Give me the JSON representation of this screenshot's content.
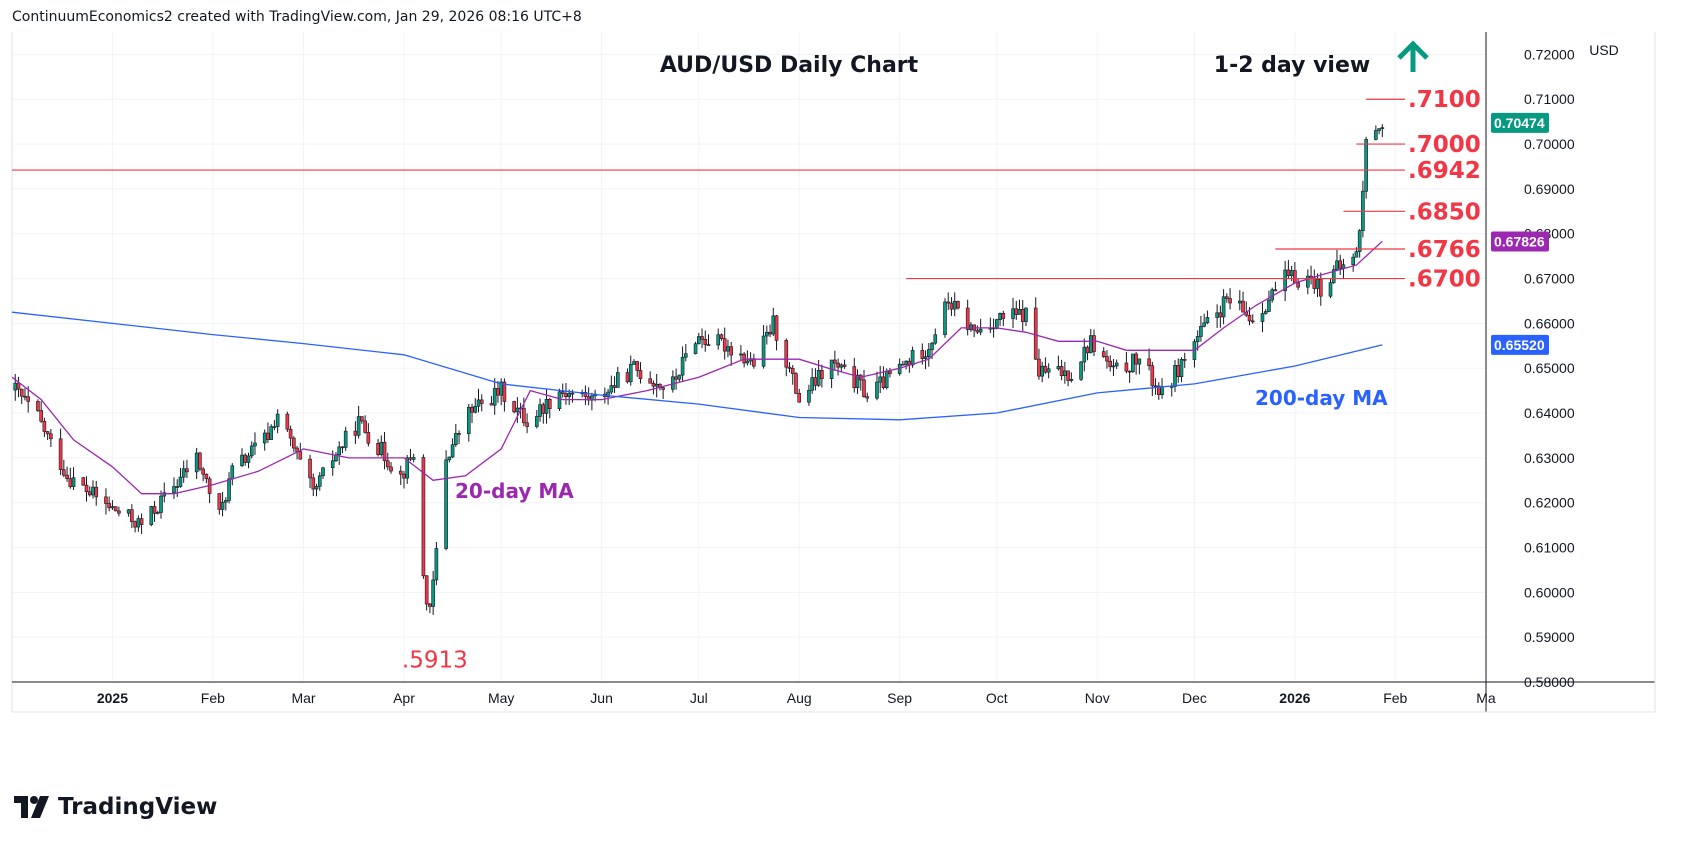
{
  "header": "ContinuumEconomics2 created with TradingView.com, Jan 29, 2026 08:16 UTC+8",
  "brand": "TradingView",
  "chart_data": {
    "type": "candlestick",
    "title": "AUD/USD Daily Chart",
    "view_label": "1-2 day view",
    "view_direction": "up",
    "currency": "USD",
    "x_range": [
      "2024-12-01",
      "2026-03-01"
    ],
    "y_range": [
      0.58,
      0.725
    ],
    "grid": true,
    "x_ticks": [
      {
        "date": "2025-01-01",
        "label": "2025",
        "bold": true
      },
      {
        "date": "2025-02-01",
        "label": "Feb"
      },
      {
        "date": "2025-03-01",
        "label": "Mar"
      },
      {
        "date": "2025-04-01",
        "label": "Apr"
      },
      {
        "date": "2025-05-01",
        "label": "May"
      },
      {
        "date": "2025-06-01",
        "label": "Jun"
      },
      {
        "date": "2025-07-01",
        "label": "Jul"
      },
      {
        "date": "2025-08-01",
        "label": "Aug"
      },
      {
        "date": "2025-09-01",
        "label": "Sep"
      },
      {
        "date": "2025-10-01",
        "label": "Oct"
      },
      {
        "date": "2025-11-01",
        "label": "Nov"
      },
      {
        "date": "2025-12-01",
        "label": "Dec"
      },
      {
        "date": "2026-01-01",
        "label": "2026",
        "bold": true
      },
      {
        "date": "2026-02-01",
        "label": "Feb"
      },
      {
        "date": "2026-03-01",
        "label": "Ma"
      }
    ],
    "y_ticks": [
      {
        "value": 0.58,
        "label": "0.58000"
      },
      {
        "value": 0.59,
        "label": "0.59000"
      },
      {
        "value": 0.6,
        "label": "0.60000"
      },
      {
        "value": 0.61,
        "label": "0.61000"
      },
      {
        "value": 0.62,
        "label": "0.62000"
      },
      {
        "value": 0.63,
        "label": "0.63000"
      },
      {
        "value": 0.64,
        "label": "0.64000"
      },
      {
        "value": 0.65,
        "label": "0.65000"
      },
      {
        "value": 0.66,
        "label": "0.66000"
      },
      {
        "value": 0.67,
        "label": "0.67000"
      },
      {
        "value": 0.68,
        "label": "0.68000"
      },
      {
        "value": 0.69,
        "label": "0.69000"
      },
      {
        "value": 0.7,
        "label": "0.70000"
      },
      {
        "value": 0.71,
        "label": "0.71000"
      },
      {
        "value": 0.72,
        "label": "0.72000"
      }
    ],
    "price_badges": [
      {
        "value": 0.70474,
        "label": "0.70474",
        "color": "#089981"
      },
      {
        "value": 0.67826,
        "label": "0.67826",
        "color": "#9c27b0"
      },
      {
        "value": 0.6552,
        "label": "0.65520",
        "color": "#2962ff"
      }
    ],
    "levels": [
      {
        "label": ".7100",
        "value": 0.71,
        "from": "2026-01-23"
      },
      {
        "label": ".7000",
        "value": 0.7,
        "from": "2026-01-20"
      },
      {
        "label": ".6942",
        "value": 0.6942,
        "from": "2024-12-01"
      },
      {
        "label": ".6850",
        "value": 0.685,
        "from": "2026-01-16"
      },
      {
        "label": ".6766",
        "value": 0.6766,
        "from": "2025-12-26"
      },
      {
        "label": ".6700",
        "value": 0.67,
        "from": "2025-09-03"
      }
    ],
    "low_annotation": {
      "label": ".5913",
      "value": 0.5913,
      "date": "2025-04-09"
    },
    "series": [
      {
        "name": "20-day MA",
        "color": "#9c27b0",
        "points": [
          [
            "2024-12-01",
            0.648
          ],
          [
            "2024-12-10",
            0.643
          ],
          [
            "2024-12-20",
            0.634
          ],
          [
            "2025-01-01",
            0.628
          ],
          [
            "2025-01-10",
            0.622
          ],
          [
            "2025-01-20",
            0.622
          ],
          [
            "2025-02-01",
            0.624
          ],
          [
            "2025-02-15",
            0.627
          ],
          [
            "2025-03-01",
            0.632
          ],
          [
            "2025-03-15",
            0.63
          ],
          [
            "2025-04-01",
            0.63
          ],
          [
            "2025-04-10",
            0.625
          ],
          [
            "2025-04-20",
            0.626
          ],
          [
            "2025-05-01",
            0.632
          ],
          [
            "2025-05-10",
            0.645
          ],
          [
            "2025-05-20",
            0.643
          ],
          [
            "2025-06-01",
            0.643
          ],
          [
            "2025-06-15",
            0.645
          ],
          [
            "2025-07-01",
            0.648
          ],
          [
            "2025-07-15",
            0.652
          ],
          [
            "2025-08-01",
            0.652
          ],
          [
            "2025-08-10",
            0.65
          ],
          [
            "2025-08-20",
            0.648
          ],
          [
            "2025-09-01",
            0.65
          ],
          [
            "2025-09-10",
            0.652
          ],
          [
            "2025-09-20",
            0.659
          ],
          [
            "2025-10-01",
            0.659
          ],
          [
            "2025-10-10",
            0.658
          ],
          [
            "2025-10-20",
            0.656
          ],
          [
            "2025-11-01",
            0.656
          ],
          [
            "2025-11-10",
            0.654
          ],
          [
            "2025-11-20",
            0.654
          ],
          [
            "2025-12-01",
            0.654
          ],
          [
            "2025-12-10",
            0.659
          ],
          [
            "2025-12-20",
            0.664
          ],
          [
            "2026-01-01",
            0.669
          ],
          [
            "2026-01-10",
            0.671
          ],
          [
            "2026-01-20",
            0.673
          ],
          [
            "2026-01-28",
            0.6783
          ]
        ]
      },
      {
        "name": "200-day MA",
        "color": "#2962ff",
        "points": [
          [
            "2024-12-01",
            0.6625
          ],
          [
            "2025-01-01",
            0.66
          ],
          [
            "2025-02-01",
            0.6575
          ],
          [
            "2025-03-01",
            0.6555
          ],
          [
            "2025-04-01",
            0.653
          ],
          [
            "2025-05-01",
            0.6465
          ],
          [
            "2025-06-01",
            0.644
          ],
          [
            "2025-07-01",
            0.642
          ],
          [
            "2025-08-01",
            0.639
          ],
          [
            "2025-09-01",
            0.6385
          ],
          [
            "2025-10-01",
            0.64
          ],
          [
            "2025-11-01",
            0.6445
          ],
          [
            "2025-12-01",
            0.6465
          ],
          [
            "2026-01-01",
            0.6505
          ],
          [
            "2026-01-28",
            0.6552
          ]
        ]
      }
    ]
  },
  "style": {
    "up": "#089981",
    "down": "#f23645",
    "level": "#f23645",
    "grid": "#f0f3fa"
  }
}
